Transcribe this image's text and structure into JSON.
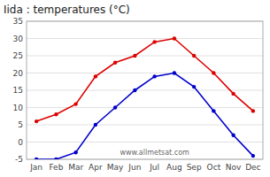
{
  "chart_data": {
    "type": "line",
    "title": "Iida : temperatures (°C)",
    "categories": [
      "Jan",
      "Feb",
      "Mar",
      "Apr",
      "May",
      "Jun",
      "Jul",
      "Aug",
      "Sep",
      "Oct",
      "Nov",
      "Dec"
    ],
    "series": [
      {
        "color": "#dd0000",
        "values": [
          6,
          8,
          11,
          19,
          23,
          25,
          29,
          30,
          25,
          20,
          14,
          9
        ]
      },
      {
        "color": "#0000cc",
        "values": [
          -5,
          -5,
          -3,
          5,
          10,
          15,
          19,
          20,
          16,
          9,
          2,
          -4
        ]
      }
    ],
    "ylim": [
      -5,
      35
    ],
    "yticks": [
      -5,
      0,
      5,
      10,
      15,
      20,
      25,
      30,
      35
    ],
    "grid": true,
    "marker": "circle",
    "annotations": [
      {
        "text": "www.allmetsat.com"
      }
    ]
  }
}
